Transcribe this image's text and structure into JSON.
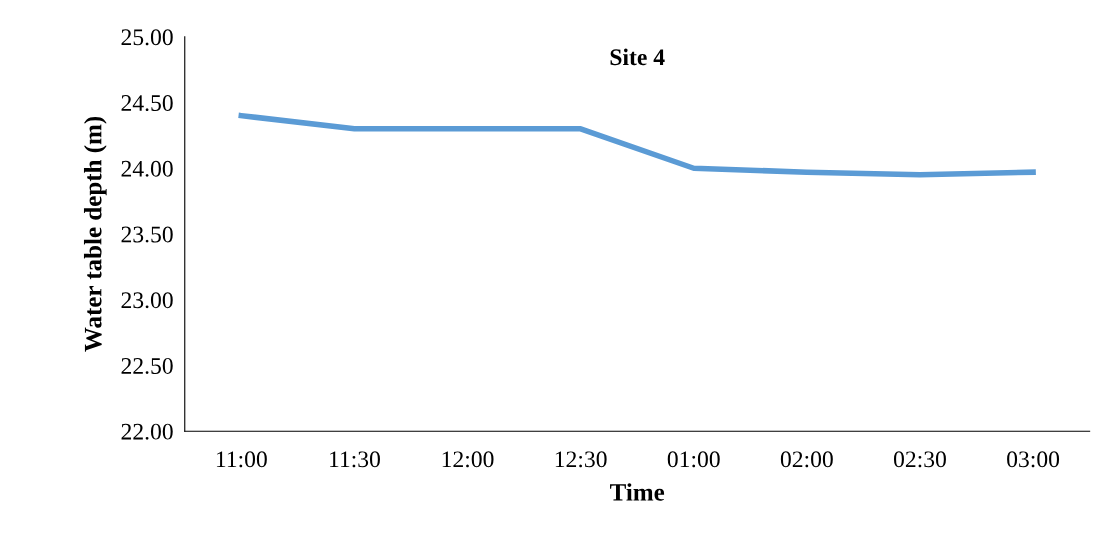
{
  "chart_data": {
    "type": "line",
    "title": "Site 4",
    "xlabel": "Time",
    "ylabel": "Water table depth (m)",
    "categories": [
      "11:00",
      "11:30",
      "12:00",
      "12:30",
      "01:00",
      "02:00",
      "02:30",
      "03:00"
    ],
    "series": [
      {
        "color": "#5b9bd5",
        "values": [
          24.4,
          24.3,
          24.3,
          24.3,
          24.0,
          23.97,
          23.95,
          23.97
        ]
      }
    ],
    "ylim": [
      22,
      25
    ],
    "yticks": [
      {
        "value": 22,
        "label": "22.00"
      },
      {
        "value": 22.5,
        "label": "22.50"
      },
      {
        "value": 23,
        "label": "23.00"
      },
      {
        "value": 23.5,
        "label": "23.50"
      },
      {
        "value": 24,
        "label": "24.00"
      },
      {
        "value": 24.5,
        "label": "24.50"
      },
      {
        "value": 25,
        "label": "25.00"
      }
    ],
    "grid": false,
    "legend": false,
    "marker": "none",
    "line_style": "solid"
  }
}
